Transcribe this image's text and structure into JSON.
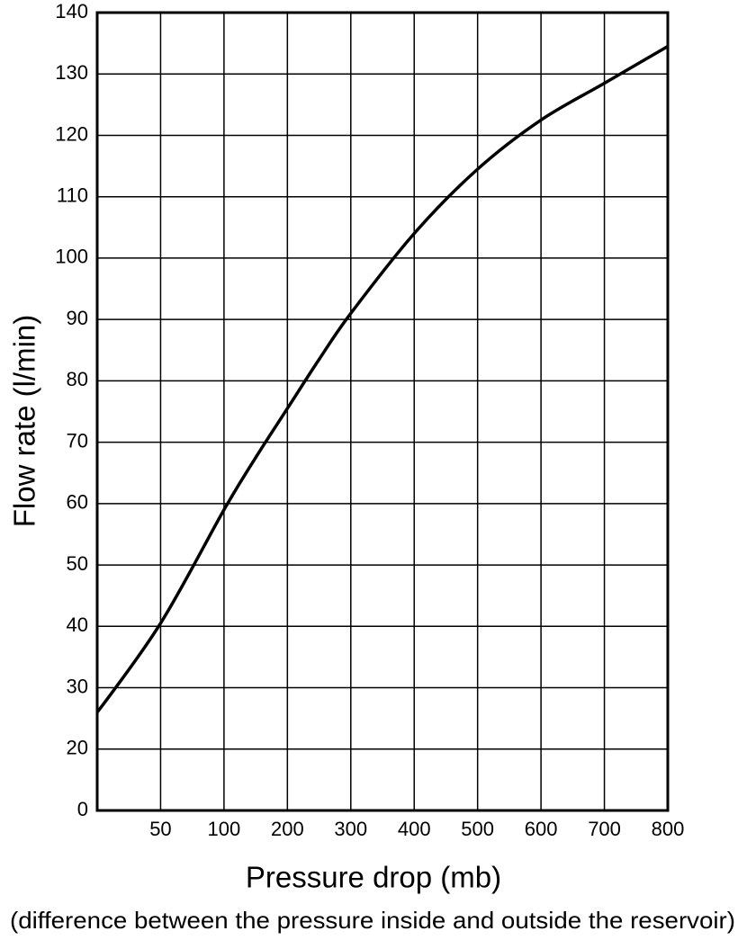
{
  "chart_data": {
    "type": "line",
    "title": "",
    "xlabel": "Pressure drop (mb)",
    "xlabel_note": "(difference between the pressure inside and outside the reservoir)",
    "ylabel": "Flow rate (l/min)",
    "x_tick_labels": [
      "50",
      "100",
      "200",
      "300",
      "400",
      "500",
      "600",
      "700",
      "800"
    ],
    "y_tick_labels": [
      "0",
      "20",
      "30",
      "40",
      "50",
      "60",
      "70",
      "80",
      "90",
      "100",
      "110",
      "120",
      "130",
      "140"
    ],
    "grid": true,
    "legend": "none",
    "x_scale": "irregular: gridlines at 0, 50, 100, 200, 300, 400, 500, 600, 700, 800 equally spaced",
    "y_scale": "irregular: gridlines at 0, 20, 30, ..., 140 equally spaced",
    "series": [
      {
        "x": [
          0,
          50,
          100,
          150,
          200,
          250,
          300,
          400,
          500,
          600,
          700,
          800
        ],
        "y": [
          26,
          40.5,
          59,
          67.5,
          75.5,
          83.5,
          91,
          104,
          114.5,
          122.5,
          128.5,
          134.5
        ]
      }
    ],
    "line_color": "#000000"
  }
}
